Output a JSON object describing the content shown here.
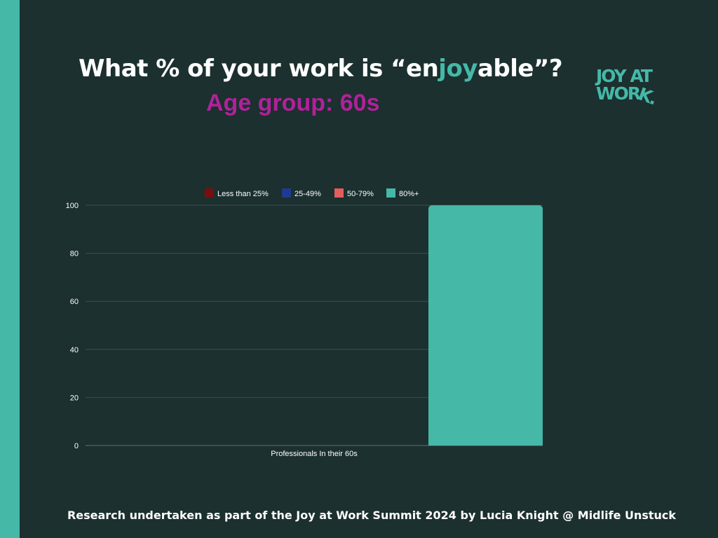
{
  "title": {
    "before": "What % of your work is “en",
    "highlight": "joy",
    "after": "able”?"
  },
  "subtitle": "Age group: 60s",
  "logo": {
    "line1": "JOY AT",
    "line2_main": "WOR",
    "line2_tilt": "K."
  },
  "footer": "Research undertaken as part of the Joy at Work Summit 2024 by Lucia Knight @ Midlife Unstuck",
  "colors": {
    "background": "#1b302f",
    "accent": "#45b8a8",
    "subtitle": "#b0219a"
  },
  "chart_data": {
    "type": "bar",
    "categories": [
      "Professionals In their 60s"
    ],
    "series": [
      {
        "name": "Less than 25%",
        "color": "#7a0e0e",
        "values": [
          0
        ]
      },
      {
        "name": "25-49%",
        "color": "#1f3a93",
        "values": [
          0
        ]
      },
      {
        "name": "50-79%",
        "color": "#e45e5e",
        "values": [
          0
        ]
      },
      {
        "name": "80%+",
        "color": "#45b8a8",
        "values": [
          100
        ]
      }
    ],
    "ylim": [
      0,
      100
    ],
    "yticks": [
      0,
      20,
      40,
      60,
      80,
      100
    ],
    "grid": true,
    "legend": "top"
  }
}
